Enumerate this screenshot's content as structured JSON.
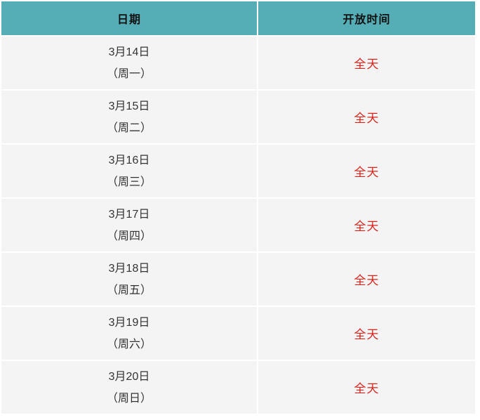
{
  "table": {
    "columns": [
      {
        "label": "日期"
      },
      {
        "label": "开放时间"
      }
    ],
    "rows": [
      {
        "date": "3月14日",
        "weekday": "（周一）",
        "time": "全天"
      },
      {
        "date": "3月15日",
        "weekday": "（周二）",
        "time": "全天"
      },
      {
        "date": "3月16日",
        "weekday": "（周三）",
        "time": "全天"
      },
      {
        "date": "3月17日",
        "weekday": "（周四）",
        "time": "全天"
      },
      {
        "date": "3月18日",
        "weekday": "（周五）",
        "time": "全天"
      },
      {
        "date": "3月19日",
        "weekday": "（周六）",
        "time": "全天"
      },
      {
        "date": "3月20日",
        "weekday": "（周日）",
        "time": "全天"
      }
    ]
  },
  "colors": {
    "page_bg": "#ffffff",
    "header_bg": "#55aeb6",
    "header_text": "#111111",
    "row_bg": "#f4f4f4",
    "date_text": "#333333",
    "time_text": "#d8251c"
  }
}
